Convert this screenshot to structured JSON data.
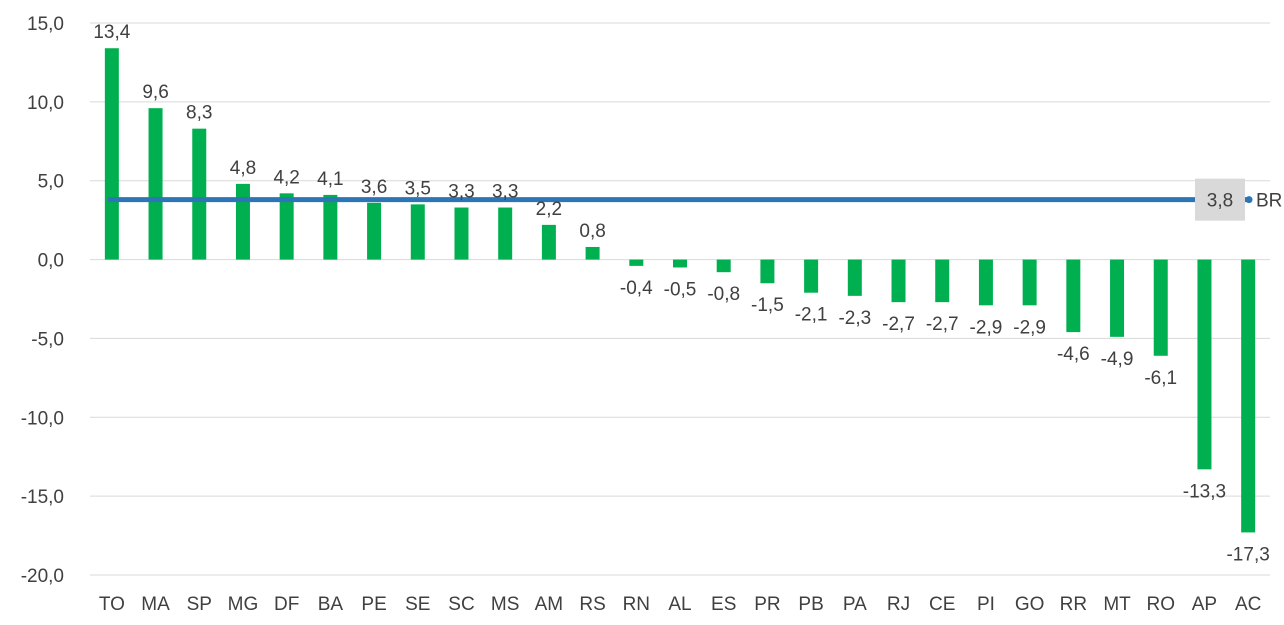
{
  "chart_data": {
    "type": "bar",
    "title": "",
    "xlabel": "",
    "ylabel": "",
    "ylim": [
      -20,
      15
    ],
    "yticks": [
      "15,0",
      "10,0",
      "5,0",
      "0,0",
      "-5,0",
      "-10,0",
      "-15,0",
      "-20,0"
    ],
    "ytick_values": [
      15,
      10,
      5,
      0,
      -5,
      -10,
      -15,
      -20
    ],
    "grid": true,
    "bar_color": "#00B050",
    "categories": [
      "TO",
      "MA",
      "SP",
      "MG",
      "DF",
      "BA",
      "PE",
      "SE",
      "SC",
      "MS",
      "AM",
      "RS",
      "RN",
      "AL",
      "ES",
      "PR",
      "PB",
      "PA",
      "RJ",
      "CE",
      "PI",
      "GO",
      "RR",
      "MT",
      "RO",
      "AP",
      "AC"
    ],
    "values": [
      13.4,
      9.6,
      8.3,
      4.8,
      4.2,
      4.1,
      3.6,
      3.5,
      3.3,
      3.3,
      2.2,
      0.8,
      -0.4,
      -0.5,
      -0.8,
      -1.5,
      -2.1,
      -2.3,
      -2.7,
      -2.7,
      -2.9,
      -2.9,
      -4.6,
      -4.9,
      -6.1,
      -13.3,
      -17.3
    ],
    "value_labels": [
      "13,4",
      "9,6",
      "8,3",
      "4,8",
      "4,2",
      "4,1",
      "3,6",
      "3,5",
      "3,3",
      "3,3",
      "2,2",
      "0,8",
      "-0,4",
      "-0,5",
      "-0,8",
      "-1,5",
      "-2,1",
      "-2,3",
      "-2,7",
      "-2,7",
      "-2,9",
      "-2,9",
      "-4,6",
      "-4,9",
      "-6,1",
      "-13,3",
      "-17,3"
    ],
    "reference_line": {
      "value": 3.8,
      "label": "3,8",
      "name": "BR",
      "color": "#2E75B6"
    }
  }
}
